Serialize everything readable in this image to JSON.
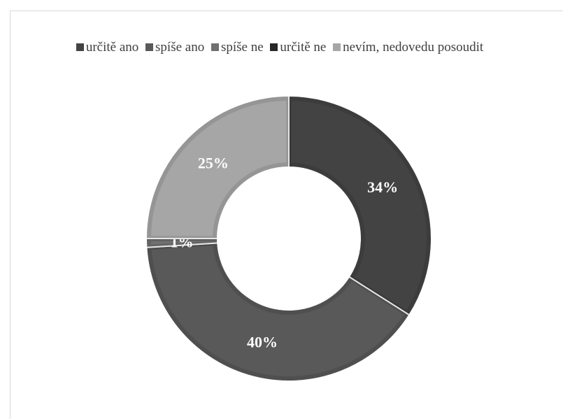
{
  "chart_data": {
    "type": "donut",
    "title": "",
    "legend_position": "top",
    "series": [
      {
        "name": "",
        "slices": [
          {
            "label": "určitě ano",
            "value": 34,
            "display": "34%",
            "color": "#434343"
          },
          {
            "label": "spíše ano",
            "value": 40,
            "display": "40%",
            "color": "#595959"
          },
          {
            "label": "spíše ne",
            "value": 1,
            "display": "1%",
            "color": "#707070"
          },
          {
            "label": "určitě ne",
            "value": 0,
            "display": "",
            "color": "#262626"
          },
          {
            "label": "nevím, nedovedu posoudit",
            "value": 25,
            "display": "25%",
            "color": "#a6a6a6"
          }
        ]
      }
    ]
  }
}
